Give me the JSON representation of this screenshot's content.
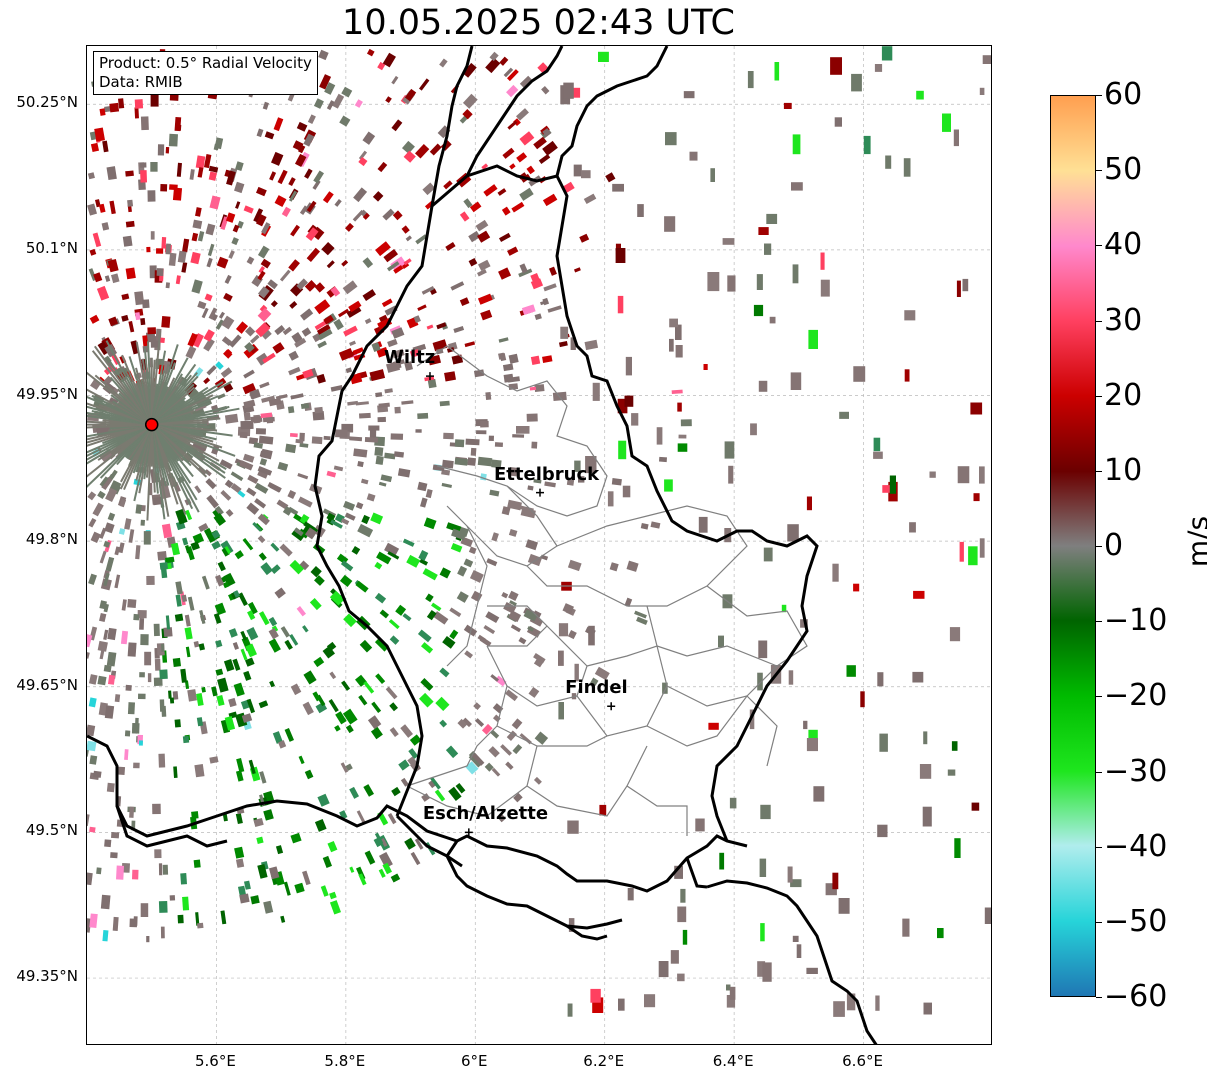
{
  "title": "10.05.2025 02:43 UTC",
  "info_box": {
    "product": "Product: 0.5° Radial Velocity",
    "data": "Data: RMIB"
  },
  "map_extent": {
    "lon_min": 5.4,
    "lon_max": 6.8,
    "lat_min": 49.28,
    "lat_max": 50.31
  },
  "lat_ticks": [
    "50.25°N",
    "50.1°N",
    "49.95°N",
    "49.8°N",
    "49.65°N",
    "49.5°N",
    "49.35°N"
  ],
  "lon_ticks": [
    "5.6°E",
    "5.8°E",
    "6°E",
    "6.2°E",
    "6.4°E",
    "6.6°E"
  ],
  "cities": [
    {
      "name": "Wiltz",
      "lon": 5.93,
      "lat": 49.97
    },
    {
      "name": "Ettelbruck",
      "lon": 6.1,
      "lat": 49.85
    },
    {
      "name": "Findel",
      "lon": 6.21,
      "lat": 49.63
    },
    {
      "name": "Esch/Alzette",
      "lon": 5.99,
      "lat": 49.5
    }
  ],
  "radar_site": {
    "lon": 5.5,
    "lat": 49.92,
    "marker_color": "#ff0000"
  },
  "colorbar": {
    "label": "m/s",
    "min": -60,
    "max": 60,
    "ticks": [
      "60",
      "50",
      "40",
      "30",
      "20",
      "10",
      "0",
      "−10",
      "−20",
      "−30",
      "−40",
      "−50",
      "−60"
    ],
    "colors": {
      "neg60": "#1f77b4",
      "neg50": "#26d4d9",
      "neg40": "#b0eded",
      "neg30": "#1ee61e",
      "neg20": "#00bb00",
      "neg10": "#006400",
      "zero": "#7f7f7f",
      "pos10": "#6b0000",
      "pos20": "#cc0000",
      "pos30": "#ff4060",
      "pos40": "#ff88cc",
      "pos50": "#ffe095",
      "pos60": "#ff9f50"
    }
  }
}
